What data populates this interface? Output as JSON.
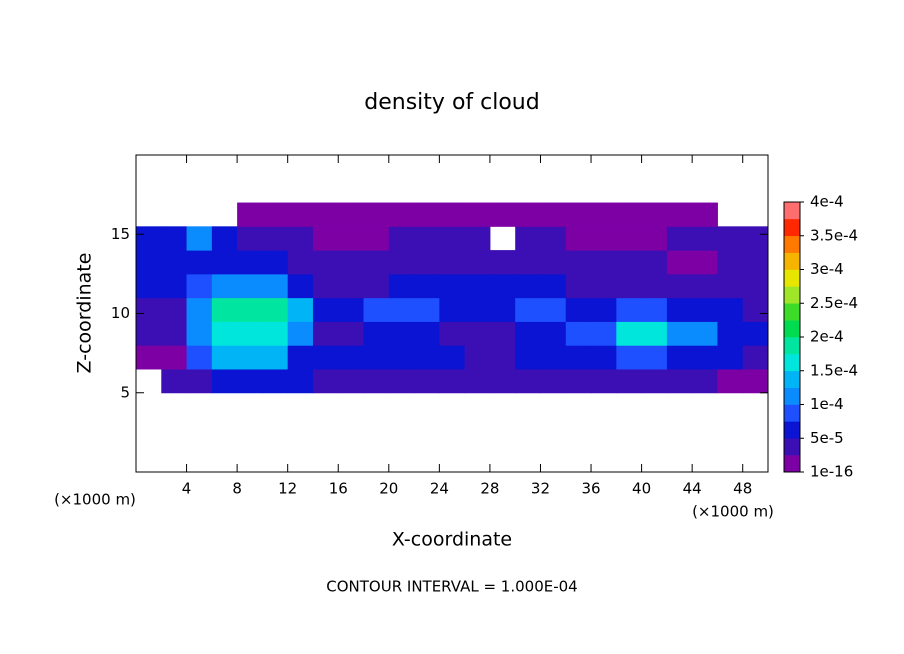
{
  "chart_data": {
    "type": "contour",
    "title": "density of cloud",
    "x_label": "X-coordinate",
    "y_label": "Z-coordinate",
    "x_unit": "(×1000 m)",
    "y_unit": "(×1000 m)",
    "footnote": "CONTOUR INTERVAL = 1.000E-04",
    "xlim": [
      0,
      50
    ],
    "ylim": [
      0,
      20
    ],
    "xticks": [
      4,
      8,
      12,
      16,
      20,
      24,
      28,
      32,
      36,
      40,
      44,
      48
    ],
    "yticks": [
      5,
      10,
      15
    ],
    "x": [
      1,
      3,
      5,
      7,
      9,
      11,
      13,
      15,
      17,
      19,
      21,
      23,
      25,
      27,
      29,
      31,
      33,
      35,
      37,
      39,
      41,
      43,
      45,
      47,
      49
    ],
    "y": [
      5.75,
      7.25,
      8.75,
      10.25,
      11.75,
      13.25,
      14.75,
      16.25
    ],
    "z": [
      [
        null,
        4e-05,
        4e-05,
        6e-05,
        6e-05,
        6e-05,
        6e-05,
        4e-05,
        4e-05,
        4e-05,
        3e-05,
        3e-05,
        3e-05,
        3e-05,
        3e-05,
        4e-05,
        4e-05,
        4e-05,
        4e-05,
        4e-05,
        4e-05,
        4e-05,
        4e-05,
        2e-05,
        2e-05
      ],
      [
        2e-05,
        2e-05,
        8e-05,
        0.00013,
        0.00013,
        0.00013,
        7e-05,
        5e-05,
        5e-05,
        6e-05,
        6e-05,
        5e-05,
        5e-05,
        4e-05,
        4e-05,
        5e-05,
        5e-05,
        7e-05,
        7e-05,
        8e-05,
        8e-05,
        5e-05,
        5e-05,
        5e-05,
        3e-05
      ],
      [
        3e-05,
        3e-05,
        0.00012,
        0.00017,
        0.00017,
        0.00017,
        0.00012,
        4e-05,
        4e-05,
        5e-05,
        5e-05,
        5e-05,
        4e-05,
        4e-05,
        4e-05,
        6e-05,
        6e-05,
        9e-05,
        9e-05,
        0.00016,
        0.00016,
        0.0001,
        0.0001,
        6e-05,
        6e-05
      ],
      [
        4e-05,
        4e-05,
        0.0001,
        0.00019,
        0.00019,
        0.00019,
        0.00014,
        5e-05,
        5e-05,
        8e-05,
        8e-05,
        8e-05,
        6e-05,
        6e-05,
        6e-05,
        9e-05,
        9e-05,
        5e-05,
        5e-05,
        8e-05,
        8e-05,
        6e-05,
        6e-05,
        6e-05,
        4e-05
      ],
      [
        5e-05,
        5e-05,
        8e-05,
        0.00012,
        0.00012,
        0.00012,
        6e-05,
        4e-05,
        4e-05,
        4e-05,
        6e-05,
        6e-05,
        5e-05,
        5e-05,
        5e-05,
        6e-05,
        6e-05,
        3e-05,
        3e-05,
        3e-05,
        3e-05,
        3e-05,
        3e-05,
        3e-05,
        3e-05
      ],
      [
        7e-05,
        7e-05,
        7e-05,
        5e-05,
        5e-05,
        5e-05,
        4e-05,
        4e-05,
        3e-05,
        3e-05,
        3e-05,
        3e-05,
        4e-05,
        4e-05,
        3e-05,
        3e-05,
        3e-05,
        3e-05,
        3e-05,
        3e-05,
        3e-05,
        2e-05,
        2e-05,
        3e-05,
        4e-05
      ],
      [
        7e-05,
        7e-05,
        0.0001,
        7e-05,
        4e-05,
        4e-05,
        4e-05,
        2e-05,
        2e-05,
        2e-05,
        3e-05,
        3e-05,
        3e-05,
        3e-05,
        null,
        3e-05,
        3e-05,
        2e-05,
        2e-05,
        2e-05,
        2e-05,
        3e-05,
        3e-05,
        3e-05,
        3e-05
      ],
      [
        null,
        null,
        null,
        null,
        1e-05,
        1e-05,
        1e-05,
        1e-05,
        1e-05,
        1e-05,
        1e-05,
        1e-05,
        1e-05,
        1e-05,
        1e-05,
        1e-05,
        1e-05,
        1e-05,
        1e-05,
        1e-05,
        1e-05,
        1e-05,
        1e-05,
        null,
        null
      ]
    ],
    "levels": [
      1e-16,
      2.5e-05,
      5e-05,
      7.5e-05,
      0.0001,
      0.000125,
      0.00015,
      0.000175,
      0.0002,
      0.000225,
      0.00025,
      0.000275,
      0.0003,
      0.000325,
      0.00035,
      0.000375,
      0.0004
    ],
    "colors": [
      "#7d00a5",
      "#3c0fb4",
      "#0a14d2",
      "#1e50ff",
      "#0a8cff",
      "#00b4f5",
      "#00e6dc",
      "#00e6a0",
      "#00dc50",
      "#3cdc28",
      "#a0e628",
      "#e6e600",
      "#f5b400",
      "#ff7800",
      "#ff2800",
      "#ff6e6e"
    ],
    "clim": [
      1e-16,
      0.0004
    ],
    "colorbar_ticks": [
      {
        "value": 1e-16,
        "label": "1e-16"
      },
      {
        "value": 5e-05,
        "label": "5e-5"
      },
      {
        "value": 0.0001,
        "label": "1e-4"
      },
      {
        "value": 0.00015,
        "label": "1.5e-4"
      },
      {
        "value": 0.0002,
        "label": "2e-4"
      },
      {
        "value": 0.00025,
        "label": "2.5e-4"
      },
      {
        "value": 0.0003,
        "label": "3e-4"
      },
      {
        "value": 0.00035,
        "label": "3.5e-4"
      },
      {
        "value": 0.0004,
        "label": "4e-4"
      }
    ]
  }
}
